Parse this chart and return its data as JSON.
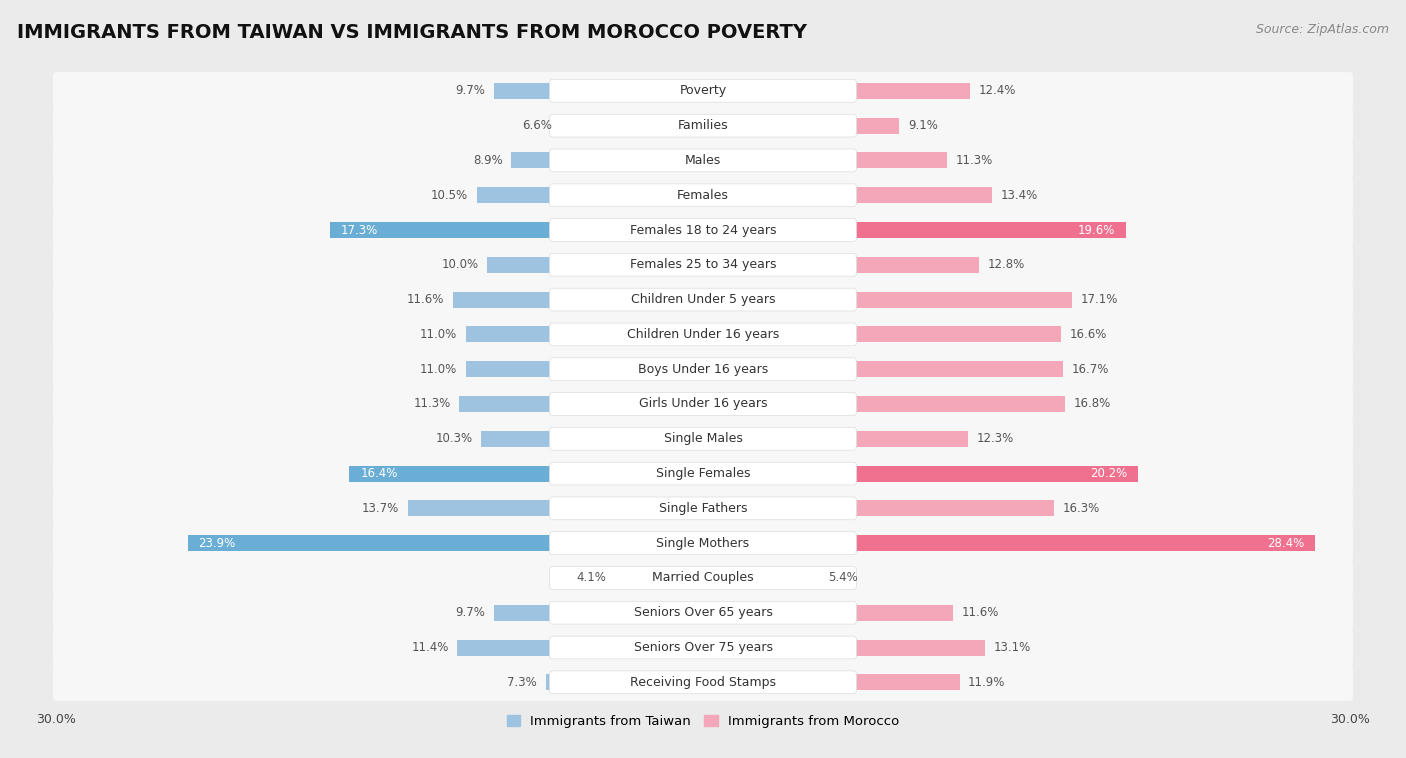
{
  "title": "IMMIGRANTS FROM TAIWAN VS IMMIGRANTS FROM MOROCCO POVERTY",
  "source": "Source: ZipAtlas.com",
  "categories": [
    "Poverty",
    "Families",
    "Males",
    "Females",
    "Females 18 to 24 years",
    "Females 25 to 34 years",
    "Children Under 5 years",
    "Children Under 16 years",
    "Boys Under 16 years",
    "Girls Under 16 years",
    "Single Males",
    "Single Females",
    "Single Fathers",
    "Single Mothers",
    "Married Couples",
    "Seniors Over 65 years",
    "Seniors Over 75 years",
    "Receiving Food Stamps"
  ],
  "taiwan_values": [
    9.7,
    6.6,
    8.9,
    10.5,
    17.3,
    10.0,
    11.6,
    11.0,
    11.0,
    11.3,
    10.3,
    16.4,
    13.7,
    23.9,
    4.1,
    9.7,
    11.4,
    7.3
  ],
  "morocco_values": [
    12.4,
    9.1,
    11.3,
    13.4,
    19.6,
    12.8,
    17.1,
    16.6,
    16.7,
    16.8,
    12.3,
    20.2,
    16.3,
    28.4,
    5.4,
    11.6,
    13.1,
    11.9
  ],
  "taiwan_color": "#9dc3e0",
  "morocco_color": "#f4a7b9",
  "taiwan_highlight_color": "#6aaed6",
  "morocco_highlight_color": "#f07090",
  "background_color": "#ebebeb",
  "row_bg_color": "#f7f7f7",
  "row_bg_alt": "#ebebeb",
  "axis_max": 30.0,
  "legend_taiwan": "Immigrants from Taiwan",
  "legend_morocco": "Immigrants from Morocco",
  "title_fontsize": 14,
  "source_fontsize": 9,
  "cat_fontsize": 9,
  "value_fontsize": 8.5,
  "highlight_rows": [
    4,
    11,
    13
  ],
  "label_pill_color": "#ffffff",
  "label_pill_edge": "#dddddd"
}
